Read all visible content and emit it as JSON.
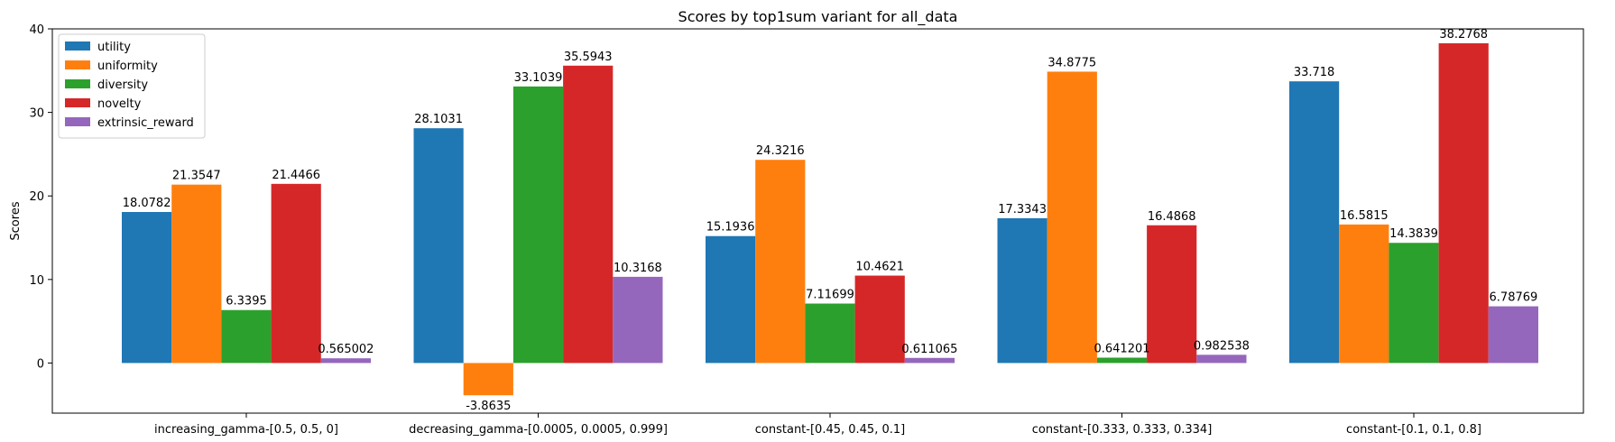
{
  "chart_data": {
    "type": "bar",
    "title": "Scores by top1sum variant for all_data",
    "xlabel": "",
    "ylabel": "Scores",
    "ylim": [
      -6,
      40
    ],
    "yticks": [
      0,
      10,
      20,
      30,
      40
    ],
    "grid": false,
    "legend_position": "top-left",
    "categories": [
      "increasing_gamma-[0.5, 0.5, 0]",
      "decreasing_gamma-[0.0005, 0.0005, 0.999]",
      "constant-[0.45, 0.45, 0.1]",
      "constant-[0.333, 0.333, 0.334]",
      "constant-[0.1, 0.1, 0.8]"
    ],
    "series": [
      {
        "name": "utility",
        "color": "#1f77b4",
        "values": [
          18.0782,
          28.1031,
          15.1936,
          17.3343,
          33.718
        ],
        "labels": [
          "18.0782",
          "28.1031",
          "15.1936",
          "17.3343",
          "33.718"
        ]
      },
      {
        "name": "uniformity",
        "color": "#ff7f0e",
        "values": [
          21.3547,
          -3.8635,
          24.3216,
          34.8775,
          16.5815
        ],
        "labels": [
          "21.3547",
          "-3.8635",
          "24.3216",
          "34.8775",
          "16.5815"
        ]
      },
      {
        "name": "diversity",
        "color": "#2ca02c",
        "values": [
          6.3395,
          33.1039,
          7.11699,
          0.641201,
          14.3839
        ],
        "labels": [
          "6.3395",
          "33.1039",
          "7.11699",
          "0.641201",
          "14.3839"
        ]
      },
      {
        "name": "novelty",
        "color": "#d62728",
        "values": [
          21.4466,
          35.5943,
          10.4621,
          16.4868,
          38.2768
        ],
        "labels": [
          "21.4466",
          "35.5943",
          "10.4621",
          "16.4868",
          "38.2768"
        ]
      },
      {
        "name": "extrinsic_reward",
        "color": "#9467bd",
        "values": [
          0.565002,
          10.3168,
          0.611065,
          0.982538,
          6.78769
        ],
        "labels": [
          "0.565002",
          "10.3168",
          "0.611065",
          "0.982538",
          "6.78769"
        ]
      }
    ]
  }
}
